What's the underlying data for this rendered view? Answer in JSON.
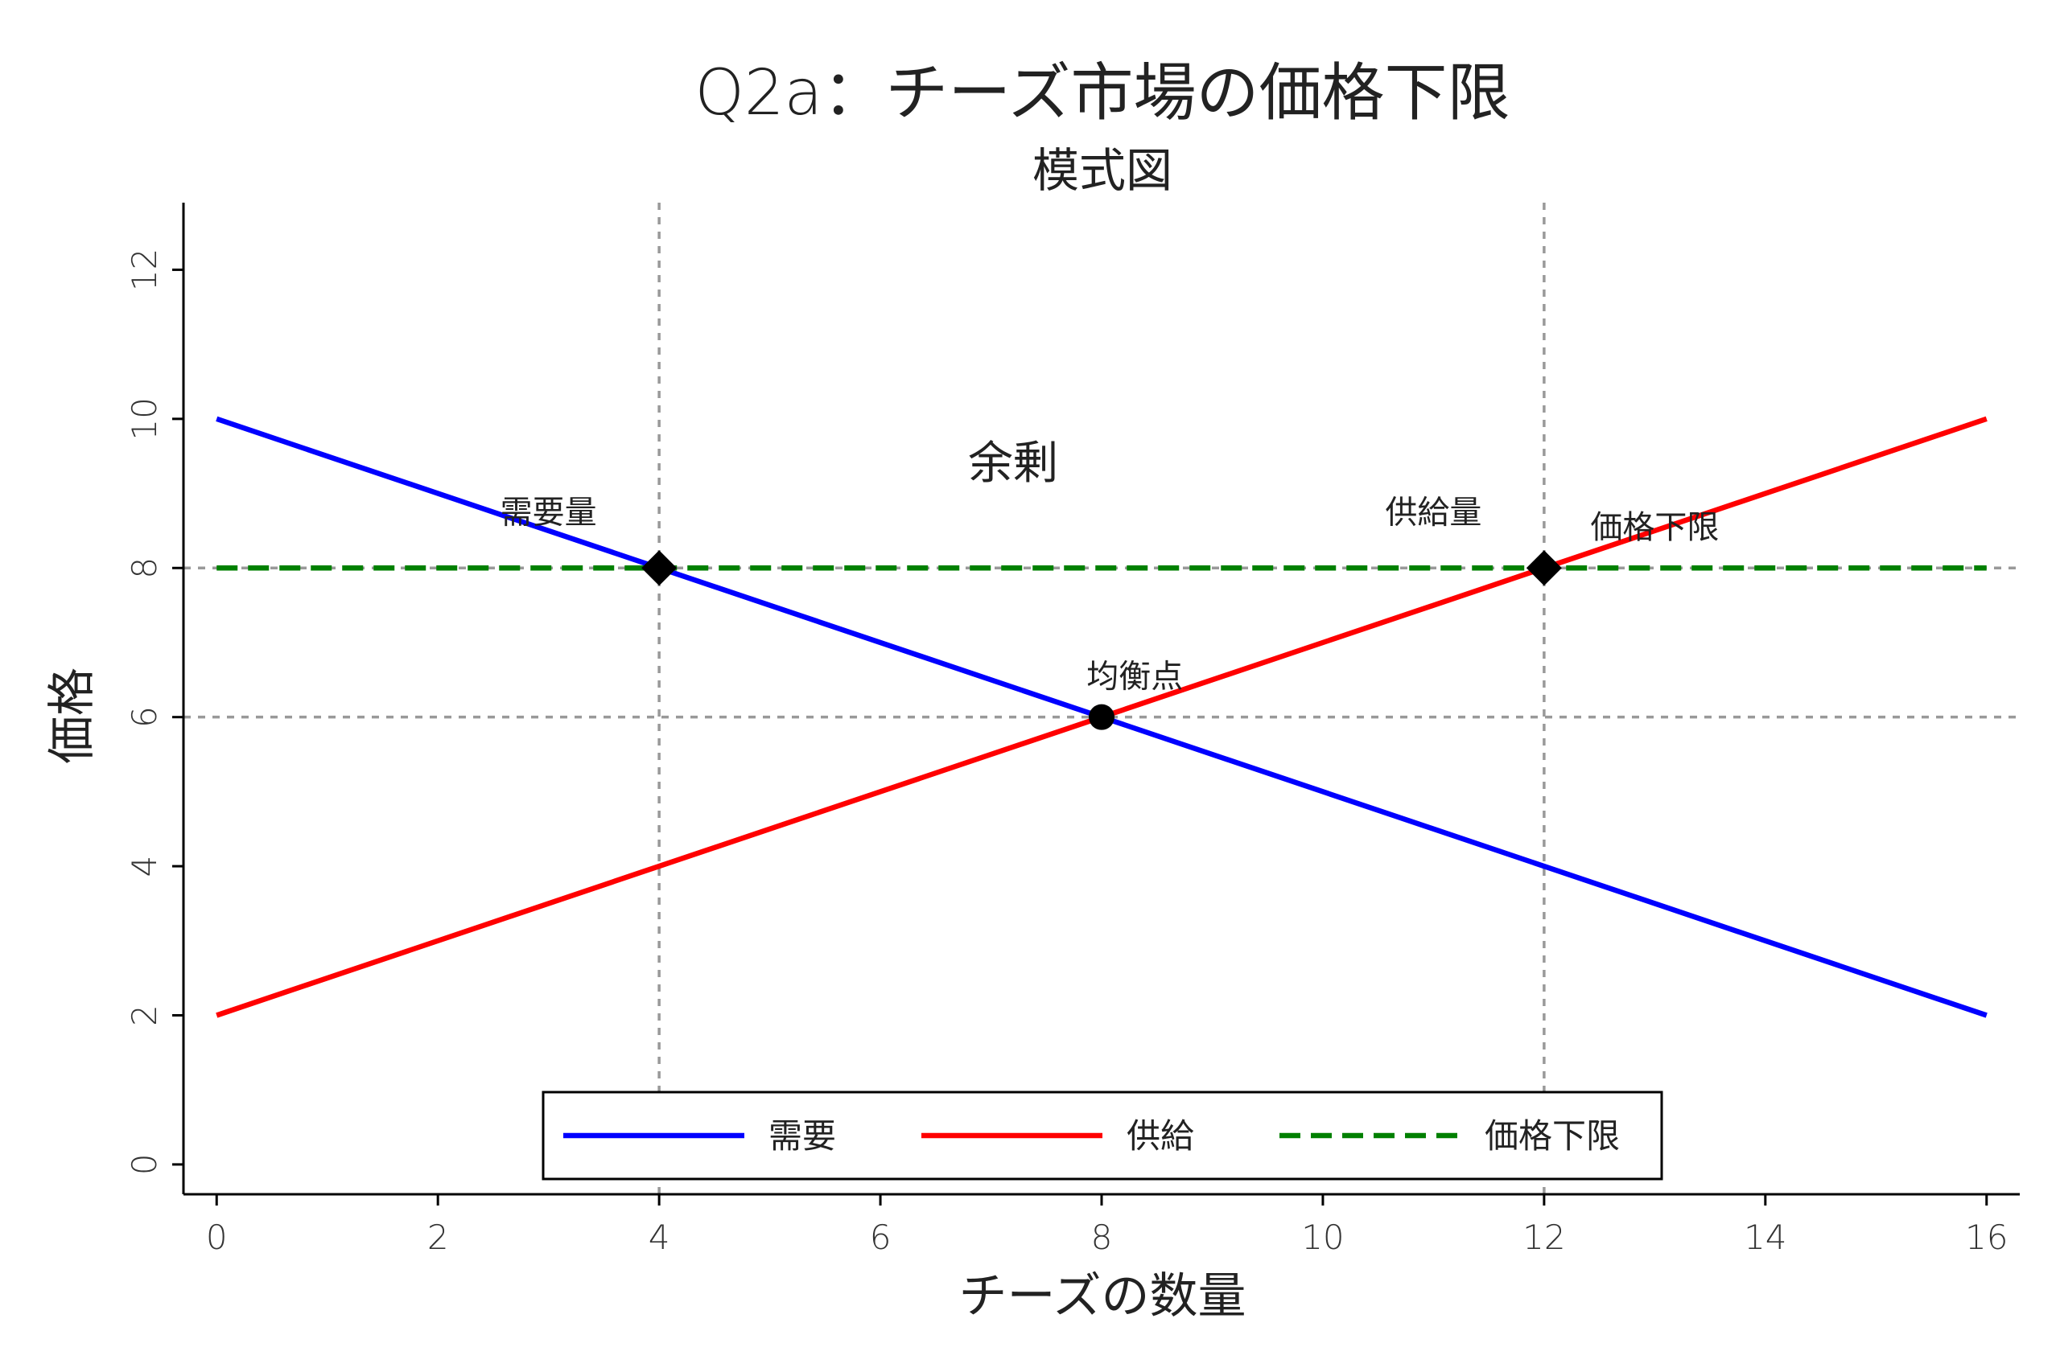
{
  "chart_data": {
    "type": "line",
    "title": "Q2a：チーズ市場の価格下限",
    "subtitle": "模式図",
    "xlabel": "チーズの数量",
    "ylabel": "価格",
    "xlim": [
      -0.3,
      16.3
    ],
    "ylim": [
      -0.4,
      12.9
    ],
    "xticks": [
      0,
      2,
      4,
      6,
      8,
      10,
      12,
      14,
      16
    ],
    "yticks": [
      0,
      2,
      4,
      6,
      8,
      10,
      12
    ],
    "grid": false,
    "legend_position": "bottom-center",
    "series": [
      {
        "name": "需要",
        "color": "#0000ff",
        "style": "solid",
        "x": [
          0,
          16
        ],
        "y": [
          10,
          2
        ]
      },
      {
        "name": "供給",
        "color": "#ff0000",
        "style": "solid",
        "x": [
          0,
          16
        ],
        "y": [
          2,
          10
        ]
      },
      {
        "name": "価格下限",
        "color": "#008000",
        "style": "dashed",
        "x": [
          0,
          16
        ],
        "y": [
          8,
          8
        ]
      }
    ],
    "reference_lines": {
      "color": "#999999",
      "vertical_x": [
        4,
        12
      ],
      "horizontal_y": [
        6,
        8
      ]
    },
    "markers": [
      {
        "x": 4,
        "y": 8,
        "shape": "diamond"
      },
      {
        "x": 12,
        "y": 8,
        "shape": "diamond"
      },
      {
        "x": 8,
        "y": 6,
        "shape": "circle"
      }
    ],
    "annotations": [
      {
        "text": "需要量",
        "x": 3.0,
        "y": 8.6,
        "size": "small"
      },
      {
        "text": "供給量",
        "x": 11.0,
        "y": 8.6,
        "size": "small"
      },
      {
        "text": "価格下限",
        "x": 13.0,
        "y": 8.4,
        "size": "small"
      },
      {
        "text": "均衡点",
        "x": 8.3,
        "y": 6.4,
        "size": "small"
      },
      {
        "text": "余剰",
        "x": 7.2,
        "y": 9.2,
        "size": "large"
      }
    ]
  }
}
